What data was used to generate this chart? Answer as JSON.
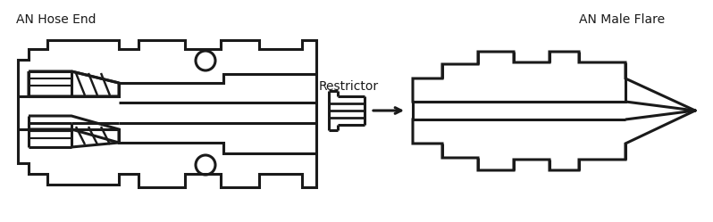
{
  "label_hose_end": "AN Hose End",
  "label_male_flare": "AN Male Flare",
  "label_restrictor": "Restrictor",
  "bg_color": "#ffffff",
  "line_color": "#1a1a1a",
  "line_width": 2.2,
  "fig_width": 7.98,
  "fig_height": 2.49,
  "dpi": 100
}
